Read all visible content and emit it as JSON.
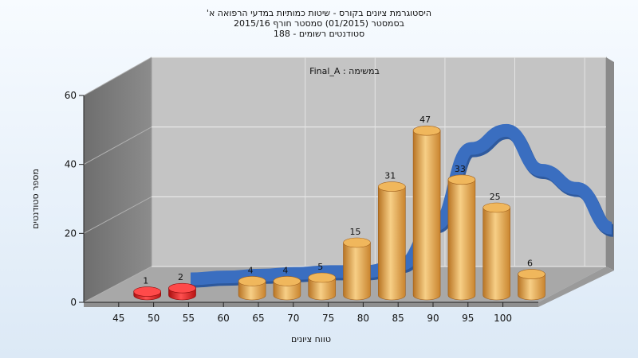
{
  "chart_data": {
    "type": "bar",
    "title_lines": [
      "היסטוגרמת ציונים בקורס - שיטות כמותיות במדעי הרפואה א'",
      "בסמסטר  (01/2015)  סמסטר חורף 2015/16",
      "סטודנטים רשומים - 188"
    ],
    "subtitle": "במשימה : Final_A",
    "xlabel": "טווח ציונים",
    "ylabel": "מספר סטודנטים",
    "x_ticks": [
      "45",
      "50",
      "55",
      "60",
      "65",
      "70",
      "75",
      "80",
      "85",
      "90",
      "95",
      "100"
    ],
    "y_ticks": [
      "0",
      "20",
      "40",
      "60"
    ],
    "ylim": [
      0,
      60
    ],
    "grid": true,
    "bars": [
      {
        "x": 47.5,
        "value": 1,
        "label": "1",
        "color": "red"
      },
      {
        "x": 52.5,
        "value": 2,
        "label": "2",
        "color": "red"
      },
      {
        "x": 62.5,
        "value": 4,
        "label": "4",
        "color": "orange"
      },
      {
        "x": 67.5,
        "value": 4,
        "label": "4",
        "color": "orange"
      },
      {
        "x": 72.5,
        "value": 5,
        "label": "5",
        "color": "orange"
      },
      {
        "x": 77.5,
        "value": 15,
        "label": "15",
        "color": "orange"
      },
      {
        "x": 82.5,
        "value": 31,
        "label": "31",
        "color": "orange"
      },
      {
        "x": 87.5,
        "value": 47,
        "label": "47",
        "color": "orange"
      },
      {
        "x": 92.5,
        "value": 33,
        "label": "33",
        "color": "orange"
      },
      {
        "x": 97.5,
        "value": 25,
        "label": "25",
        "color": "orange"
      },
      {
        "x": 102.5,
        "value": 6,
        "label": "6",
        "color": "orange"
      }
    ],
    "curve": {
      "type": "line",
      "x": [
        50,
        55,
        60,
        65,
        70,
        75,
        80,
        85,
        90,
        95,
        100,
        105,
        110
      ],
      "values": [
        1,
        1.5,
        2,
        2.5,
        3,
        3,
        5,
        16,
        37,
        42,
        31,
        26,
        15
      ]
    },
    "colors": {
      "red": "#e02020",
      "orange": "#e8a040",
      "curve": "#3a6ec0",
      "back_wall": "#c4c4c4",
      "side_wall": "#7e7e7e",
      "floor": "#a8a8a8"
    }
  }
}
